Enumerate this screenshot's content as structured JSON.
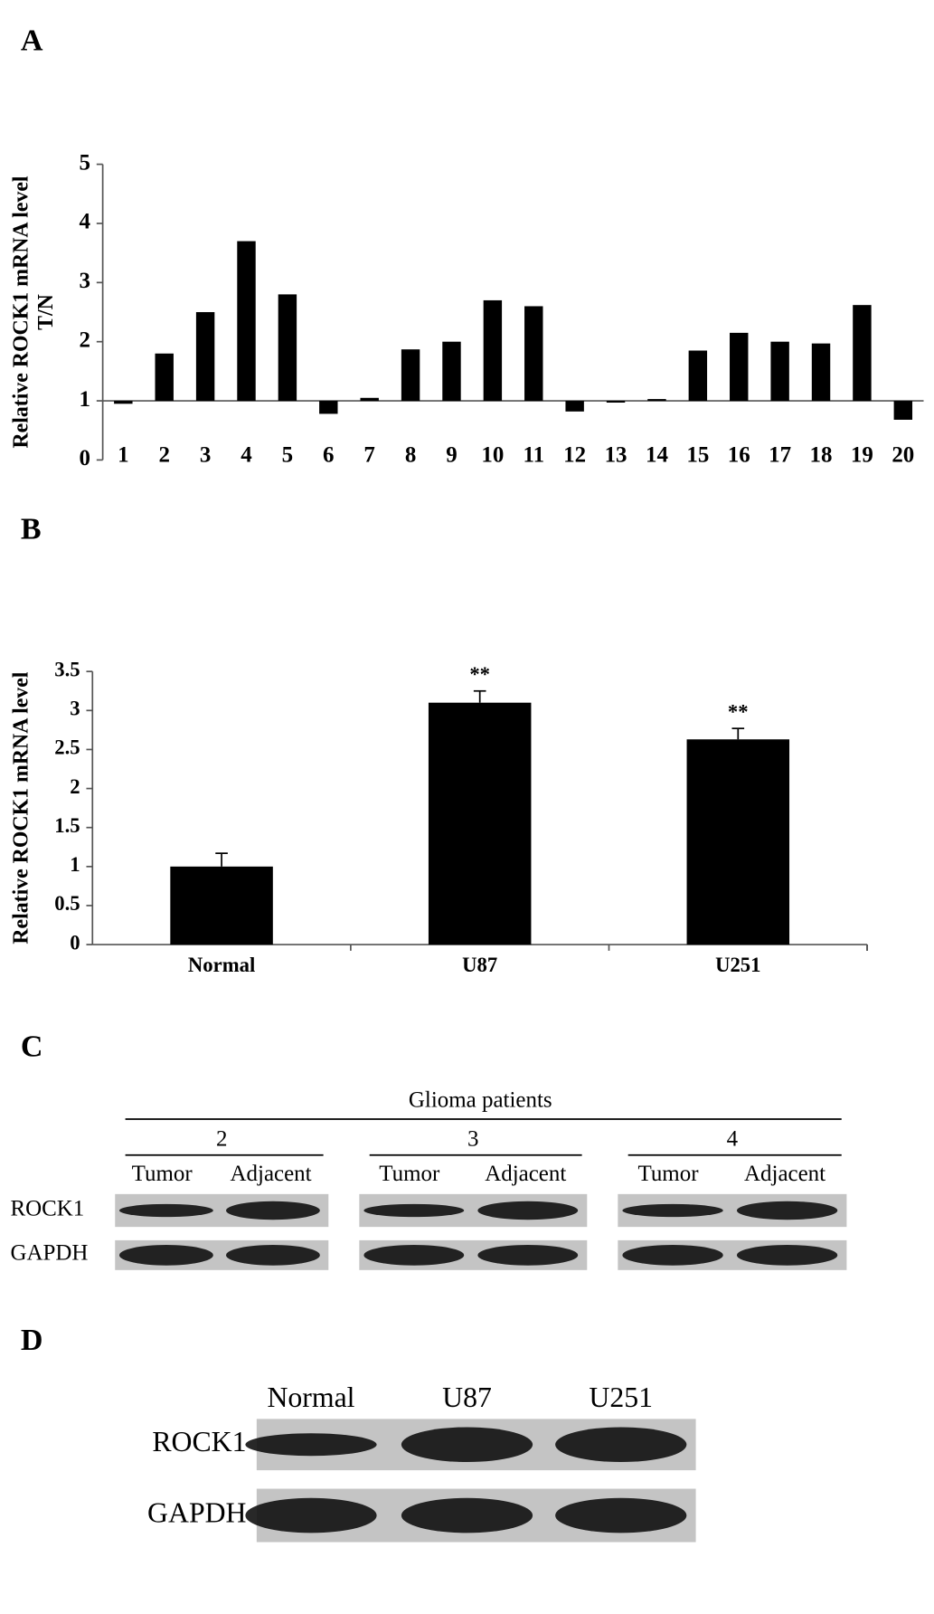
{
  "panel_labels": [
    "A",
    "B",
    "C",
    "D"
  ],
  "chart_data": [
    {
      "type": "bar",
      "ylabel": [
        "Relative ROCK1 mRNA level",
        "T/N"
      ],
      "categories": [
        "1",
        "2",
        "3",
        "4",
        "5",
        "6",
        "7",
        "8",
        "9",
        "10",
        "11",
        "12",
        "13",
        "14",
        "15",
        "16",
        "17",
        "18",
        "19",
        "20"
      ],
      "values": [
        0.95,
        1.8,
        2.5,
        3.7,
        2.8,
        0.78,
        1.05,
        1.87,
        2.0,
        2.7,
        2.6,
        0.82,
        0.97,
        1.03,
        1.85,
        2.15,
        2.0,
        1.97,
        2.62,
        0.68
      ],
      "baseline": 1,
      "color": "#000000",
      "ylim": [
        0,
        5
      ],
      "yticks": [
        0,
        1,
        2,
        3,
        4,
        5
      ]
    },
    {
      "type": "bar",
      "ylabel": "Relative ROCK1 mRNA level",
      "categories": [
        "Normal",
        "U87",
        "U251"
      ],
      "values": [
        1.0,
        3.1,
        2.63
      ],
      "errors": [
        0.17,
        0.15,
        0.14
      ],
      "annotations": [
        null,
        "**",
        "**"
      ],
      "color": "#000000",
      "ylim": [
        0,
        3.5
      ],
      "yticks": [
        0,
        0.5,
        1,
        1.5,
        2,
        2.5,
        3,
        3.5
      ]
    }
  ],
  "blot_c": {
    "title": "Glioma patients",
    "groups": [
      "2",
      "3",
      "4"
    ],
    "lanes": [
      "Tumor",
      "Adjacent"
    ],
    "rows": [
      "ROCK1",
      "GAPDH"
    ]
  },
  "blot_d": {
    "lanes": [
      "Normal",
      "U87",
      "U251"
    ],
    "rows": [
      "ROCK1",
      "GAPDH"
    ]
  }
}
